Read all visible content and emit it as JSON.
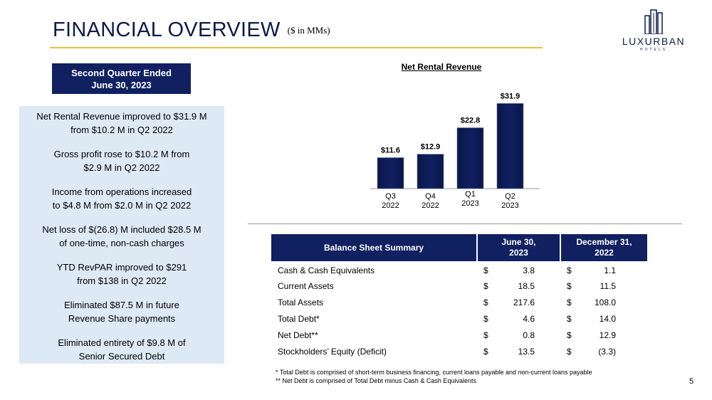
{
  "header": {
    "title": "FINANCIAL OVERVIEW",
    "units": "($ in MMs)",
    "logo_brand": "LUXURBAN",
    "logo_sub": "HOTELS"
  },
  "period_box": {
    "line1": "Second Quarter Ended",
    "line2": "June 30, 2023"
  },
  "highlights": [
    [
      "Net Rental Revenue improved to $31.9 M",
      "from $10.2 M in Q2 2022"
    ],
    [
      "Gross profit rose to $10.2 M from",
      "$2.9 M in Q2 2022"
    ],
    [
      "Income from operations increased",
      "to $4.8 M from $2.0 M in Q2 2022"
    ],
    [
      "Net loss of $(26.8) M included $28.5 M",
      "of one-time, non-cash charges"
    ],
    [
      "YTD RevPAR improved to $291",
      "from $138 in Q2 2022"
    ],
    [
      "Eliminated $87.5 M in future",
      "Revenue Share payments"
    ],
    [
      "Eliminated entirety of $9.8 M of",
      "Senior Secured Debt"
    ]
  ],
  "chart_data": {
    "type": "bar",
    "title": "Net Rental Revenue",
    "categories": [
      [
        "Q3",
        "2022"
      ],
      [
        "Q4",
        "2022"
      ],
      [
        "Q1",
        "2023"
      ],
      [
        "Q2",
        "2023"
      ]
    ],
    "values": [
      11.6,
      12.9,
      22.8,
      31.9
    ],
    "data_labels": [
      "$11.6",
      "$12.9",
      "$22.8",
      "$31.9"
    ],
    "xlabel": "",
    "ylabel": "",
    "ylim": [
      0,
      40
    ],
    "grid": false,
    "bar_color": "#102060"
  },
  "balance_sheet": {
    "headers": [
      "Balance Sheet Summary",
      [
        "June 30,",
        "2023"
      ],
      [
        "December 31,",
        "2022"
      ]
    ],
    "rows": [
      {
        "label": "Cash & Cash Equivalents",
        "c1_sym": "$",
        "c1": "3.8",
        "c2_sym": "$",
        "c2": "1.1"
      },
      {
        "label": "Current Assets",
        "c1_sym": "$",
        "c1": "18.5",
        "c2_sym": "$",
        "c2": "11.5"
      },
      {
        "label": "Total Assets",
        "c1_sym": "$",
        "c1": "217.6",
        "c2_sym": "$",
        "c2": "108.0"
      },
      {
        "label": "Total Debt*",
        "c1_sym": "$",
        "c1": "4.6",
        "c2_sym": "$",
        "c2": "14.0"
      },
      {
        "label": "Net Debt**",
        "c1_sym": "$",
        "c1": "0.8",
        "c2_sym": "$",
        "c2": "12.9"
      },
      {
        "label": "Stockholders’ Equity (Deficit)",
        "c1_sym": "$",
        "c1": "13.5",
        "c2_sym": "$",
        "c2": "(3.3)"
      }
    ]
  },
  "footnotes": [
    "*  Total Debt is comprised of short-term business financing, current loans payable and non-current loans payable",
    "**  Net Debt is comprised of Total Debt minus Cash & Cash Equivalents"
  ],
  "page_number": "5",
  "colors": {
    "navy": "#102060",
    "gold_rule": "#e8c23a",
    "panel_bg": "#dde9f5"
  }
}
